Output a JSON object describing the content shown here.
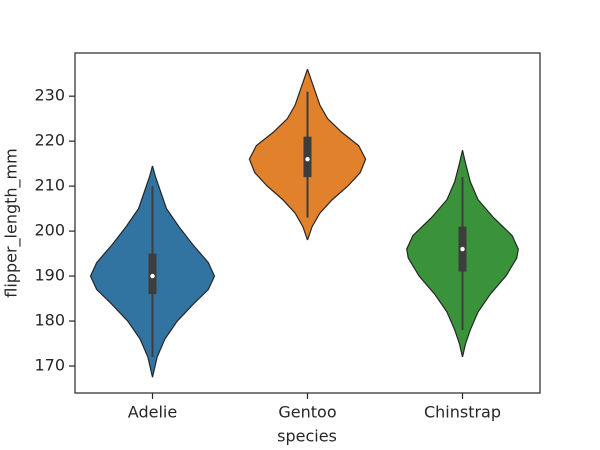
{
  "chart_data": {
    "type": "violin",
    "x_label": "species",
    "y_label": "flipper_length_mm",
    "categories": [
      "Adelie",
      "Gentoo",
      "Chinstrap"
    ],
    "ylim": [
      164,
      239.6
    ],
    "yticks": [
      170,
      180,
      190,
      200,
      210,
      220,
      230
    ],
    "violins": [
      {
        "color": "#3274a1",
        "min": 172,
        "q1": 186,
        "median": 190,
        "q3": 195,
        "max": 210,
        "density_y": [
          167.5,
          172,
          176,
          180,
          184,
          187,
          190,
          193,
          197,
          201,
          205,
          209,
          212,
          214.5
        ],
        "density_width": [
          0,
          0.03,
          0.08,
          0.16,
          0.27,
          0.36,
          0.4,
          0.36,
          0.26,
          0.17,
          0.09,
          0.05,
          0.02,
          0
        ]
      },
      {
        "color": "#e1812c",
        "min": 203,
        "q1": 212,
        "median": 216,
        "q3": 221,
        "max": 231,
        "density_y": [
          198,
          201,
          204,
          207,
          210,
          213,
          216,
          219,
          222,
          225,
          228,
          231,
          234,
          236
        ],
        "density_width": [
          0,
          0.03,
          0.08,
          0.16,
          0.26,
          0.34,
          0.375,
          0.33,
          0.22,
          0.13,
          0.08,
          0.05,
          0.02,
          0
        ]
      },
      {
        "color": "#3a923a",
        "min": 178,
        "q1": 191,
        "median": 196,
        "q3": 201,
        "max": 212,
        "density_y": [
          172,
          175,
          178,
          182,
          186,
          190,
          194,
          196,
          199,
          203,
          207,
          211,
          215,
          218
        ],
        "density_width": [
          0,
          0.02,
          0.05,
          0.1,
          0.18,
          0.28,
          0.35,
          0.36,
          0.32,
          0.2,
          0.1,
          0.05,
          0.02,
          0
        ]
      }
    ]
  }
}
